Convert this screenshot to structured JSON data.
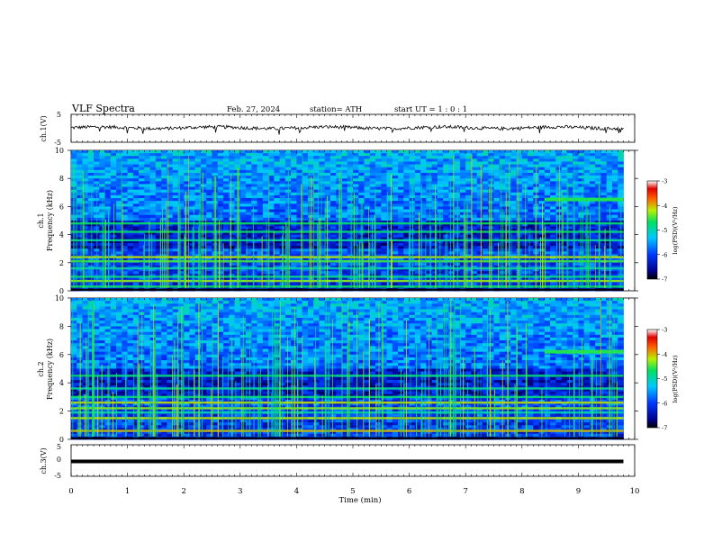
{
  "header": {
    "title": "VLF  Spectra",
    "date": "Feb. 27, 2024",
    "station": "station= ATH",
    "start": "start  UT  =   1 : 0  : 1"
  },
  "chart_data": [
    {
      "type": "line",
      "panel": "ch1-waveform",
      "ylabel": "ch.1(V)",
      "ylim": [
        -5,
        5
      ],
      "yticks": [
        "5",
        "-5"
      ],
      "xlim": [
        0,
        10
      ],
      "series": [
        {
          "values_summary": "noisy trace near 0.2 V, span 0–9.8 min"
        }
      ],
      "color": "#000000"
    },
    {
      "type": "heatmap",
      "panel": "ch1-spectrogram",
      "ylabel": "Frequency (kHz)",
      "channel_label": "ch.1",
      "ylim": [
        0,
        10
      ],
      "yticks": [
        "0",
        "2",
        "4",
        "6",
        "8",
        "10"
      ],
      "xlim": [
        0,
        10
      ],
      "data_span_min": [
        0,
        9.8
      ],
      "colorbar": {
        "label": "log(PSD)(V²/Hz)",
        "ticks": [
          "-3",
          "-4",
          "-5",
          "-6",
          "-7"
        ],
        "range": [
          -7,
          -3
        ]
      },
      "bands_khz": [
        0.3,
        0.7,
        1.0,
        1.6,
        2.1,
        2.4,
        3.6,
        4.2,
        4.8
      ],
      "tone_khz": 6.5,
      "tone_start_min": 8.4
    },
    {
      "type": "heatmap",
      "panel": "ch2-spectrogram",
      "ylabel": "Frequency (kHz)",
      "channel_label": "ch.2",
      "ylim": [
        0,
        10
      ],
      "yticks": [
        "0",
        "2",
        "4",
        "6",
        "8",
        "10"
      ],
      "xlim": [
        0,
        10
      ],
      "data_span_min": [
        0,
        9.8
      ],
      "colorbar": {
        "label": "log(PSD)(V²/Hz)",
        "ticks": [
          "-3",
          "-4",
          "-5",
          "-6",
          "-7"
        ],
        "range": [
          -7,
          -3
        ]
      },
      "bands_khz": [
        0.6,
        1.5,
        1.9,
        2.2,
        2.6,
        3.0,
        3.6,
        4.5
      ],
      "tone_khz": 6.2,
      "tone_start_min": 8.4
    },
    {
      "type": "line",
      "panel": "ch3-waveform",
      "ylabel": "ch.3(V)",
      "ylim": [
        -5,
        5
      ],
      "yticks": [
        "5",
        "0",
        "-5"
      ],
      "xlim": [
        0,
        10
      ],
      "series": [
        {
          "values_summary": "flat trace at -0.3 V, span 0–9.8 min"
        }
      ],
      "color": "#000000",
      "xlabel": "Time  (min)",
      "xticks": [
        "0",
        "1",
        "2",
        "3",
        "4",
        "5",
        "6",
        "7",
        "8",
        "9",
        "10"
      ]
    }
  ]
}
